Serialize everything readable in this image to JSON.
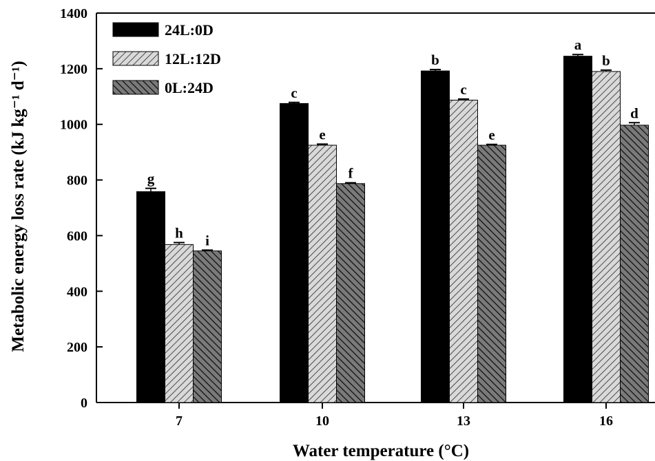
{
  "chart_data": {
    "type": "bar",
    "title": "",
    "xlabel": "Water temperature (°C)",
    "ylabel": "Metabolic energy loss rate (kJ kg⁻¹ d⁻¹)",
    "categories": [
      "7",
      "10",
      "13",
      "16"
    ],
    "ylim": [
      0,
      1400
    ],
    "yticks": [
      0,
      200,
      400,
      600,
      800,
      1000,
      1200,
      1400
    ],
    "grid": false,
    "legend_position": "top-left",
    "series": [
      {
        "name": "24L:0D",
        "fill": "solid",
        "color": "#000000",
        "values": [
          758,
          1075,
          1192,
          1245
        ],
        "errors": [
          12,
          4,
          5,
          6
        ],
        "labels": [
          "g",
          "c",
          "b",
          "a"
        ]
      },
      {
        "name": "12L:12D",
        "fill": "hatch-light",
        "color": "#c8c8c8",
        "values": [
          568,
          925,
          1087,
          1190
        ],
        "errors": [
          7,
          4,
          4,
          5
        ],
        "labels": [
          "h",
          "e",
          "c",
          "b"
        ]
      },
      {
        "name": "0L:24D",
        "fill": "hatch-dark",
        "color": "#555555",
        "values": [
          545,
          787,
          925,
          997
        ],
        "errors": [
          3,
          3,
          3,
          9
        ],
        "labels": [
          "i",
          "f",
          "e",
          "d"
        ]
      }
    ]
  }
}
